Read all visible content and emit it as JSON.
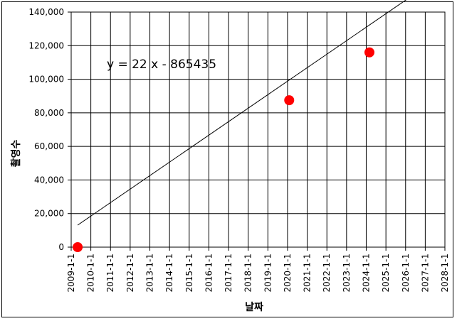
{
  "chart_data": {
    "type": "scatter",
    "title": "",
    "xlabel": "날짜",
    "ylabel": "촬영수",
    "x_ticks": [
      "2009-1-1",
      "2010-1-1",
      "2011-1-1",
      "2012-1-1",
      "2013-1-1",
      "2014-1-1",
      "2015-1-1",
      "2016-1-1",
      "2017-1-1",
      "2018-1-1",
      "2019-1-1",
      "2020-1-1",
      "2021-1-1",
      "2022-1-1",
      "2023-1-1",
      "2024-1-1",
      "2025-1-1",
      "2026-1-1",
      "2027-1-1",
      "2028-1-1"
    ],
    "y_ticks": [
      "0",
      "20,000",
      "40,000",
      "60,000",
      "80,000",
      "100,000",
      "120,000",
      "140,000"
    ],
    "xlim": [
      "2009-1-1",
      "2028-1-1"
    ],
    "ylim": [
      0,
      140000
    ],
    "grid": true,
    "legend": "none",
    "series": [
      {
        "points": [
          {
            "x": "2009-5-1",
            "y": 0
          },
          {
            "x": "2020-2-1",
            "y": 87500
          },
          {
            "x": "2024-3-1",
            "y": 116000
          }
        ],
        "color": "#ff0000"
      }
    ],
    "trendline": {
      "equation": "y = 22 x - 865435",
      "x_start": "2009-5-1",
      "x_end": "2026-11-1",
      "color": "#000000"
    }
  }
}
